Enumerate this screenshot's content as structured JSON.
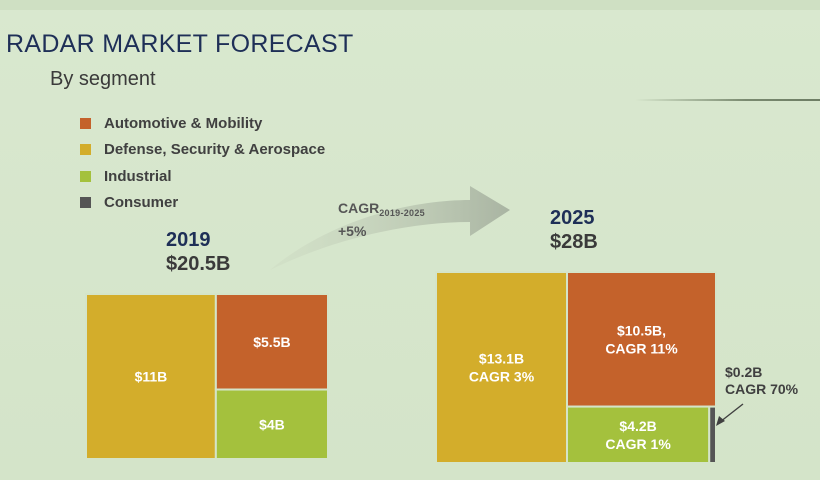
{
  "title": "RADAR MARKET FORECAST",
  "subtitle": "By segment",
  "chart_data": {
    "type": "treemap",
    "legend": [
      {
        "name": "Automotive & Mobility",
        "color": "#c4622b"
      },
      {
        "name": "Defense, Security & Aerospace",
        "color": "#d3ad2b"
      },
      {
        "name": "Industrial",
        "color": "#a4c13d"
      },
      {
        "name": "Consumer",
        "color": "#555555"
      }
    ],
    "growth": {
      "label": "CAGR",
      "period": "2019-2025",
      "value": "+5%"
    },
    "panels": [
      {
        "year": "2019",
        "total": "$20.5B",
        "segments": [
          {
            "segment": "Defense, Security & Aerospace",
            "value": 11,
            "label": "$11B",
            "sub": "",
            "color": "#d3ad2b"
          },
          {
            "segment": "Automotive & Mobility",
            "value": 5.5,
            "label": "$5.5B",
            "sub": "",
            "color": "#c4622b"
          },
          {
            "segment": "Industrial",
            "value": 4,
            "label": "$4B",
            "sub": "",
            "color": "#a4c13d"
          }
        ]
      },
      {
        "year": "2025",
        "total": "$28B",
        "segments": [
          {
            "segment": "Defense, Security & Aerospace",
            "value": 13.1,
            "label": "$13.1B",
            "sub": "CAGR 3%",
            "color": "#d3ad2b"
          },
          {
            "segment": "Automotive & Mobility",
            "value": 10.5,
            "label": "$10.5B,",
            "sub": "CAGR 11%",
            "color": "#c4622b"
          },
          {
            "segment": "Industrial",
            "value": 4.2,
            "label": "$4.2B",
            "sub": "CAGR 1%",
            "color": "#a4c13d"
          },
          {
            "segment": "Consumer",
            "value": 0.2,
            "label": "$0.2B",
            "sub": "CAGR 70%",
            "color": "#555555"
          }
        ]
      }
    ]
  }
}
